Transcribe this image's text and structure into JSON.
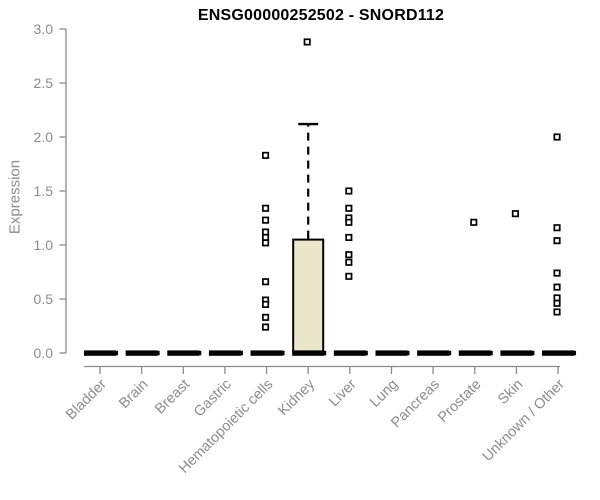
{
  "chart_data": {
    "type": "boxplot",
    "title": "ENSG00000252502 - SNORD112",
    "ylabel": "Expression",
    "xlabel": "",
    "ylim": [
      0,
      3
    ],
    "yticks": [
      "0.0",
      "0.5",
      "1.0",
      "1.5",
      "2.0",
      "2.5",
      "3.0"
    ],
    "grid": false,
    "legend_position": "none",
    "categories": [
      "Bladder",
      "Brain",
      "Breast",
      "Gastric",
      "Hematopoietic cells",
      "Kidney",
      "Liver",
      "Lung",
      "Pancreas",
      "Prostate",
      "Skin",
      "Unknown / Other"
    ],
    "boxes": [
      {
        "category": "Bladder",
        "q1": 0,
        "median": 0,
        "q3": 0,
        "whisker_low": 0,
        "whisker_high": 0,
        "outliers": []
      },
      {
        "category": "Brain",
        "q1": 0,
        "median": 0,
        "q3": 0,
        "whisker_low": 0,
        "whisker_high": 0,
        "outliers": []
      },
      {
        "category": "Breast",
        "q1": 0,
        "median": 0,
        "q3": 0,
        "whisker_low": 0,
        "whisker_high": 0,
        "outliers": []
      },
      {
        "category": "Gastric",
        "q1": 0,
        "median": 0,
        "q3": 0,
        "whisker_low": 0,
        "whisker_high": 0,
        "outliers": []
      },
      {
        "category": "Hematopoietic cells",
        "q1": 0,
        "median": 0,
        "q3": 0,
        "whisker_low": 0,
        "whisker_high": 0,
        "outliers": [
          1.83,
          1.34,
          1.23,
          1.12,
          1.07,
          1.02,
          0.66,
          0.49,
          0.45,
          0.33,
          0.24
        ]
      },
      {
        "category": "Kidney",
        "q1": 0,
        "median": 0,
        "q3": 1.05,
        "whisker_low": 0,
        "whisker_high": 2.12,
        "outliers": [
          2.88
        ]
      },
      {
        "category": "Liver",
        "q1": 0,
        "median": 0,
        "q3": 0,
        "whisker_low": 0,
        "whisker_high": 0,
        "outliers": [
          1.5,
          1.34,
          1.25,
          1.21,
          1.07,
          0.91,
          0.84,
          0.71
        ]
      },
      {
        "category": "Lung",
        "q1": 0,
        "median": 0,
        "q3": 0,
        "whisker_low": 0,
        "whisker_high": 0,
        "outliers": []
      },
      {
        "category": "Pancreas",
        "q1": 0,
        "median": 0,
        "q3": 0,
        "whisker_low": 0,
        "whisker_high": 0,
        "outliers": []
      },
      {
        "category": "Prostate",
        "q1": 0,
        "median": 0,
        "q3": 0,
        "whisker_low": 0,
        "whisker_high": 0,
        "outliers": [
          1.21
        ]
      },
      {
        "category": "Skin",
        "q1": 0,
        "median": 0,
        "q3": 0,
        "whisker_low": 0,
        "whisker_high": 0,
        "outliers": [
          1.29
        ]
      },
      {
        "category": "Unknown / Other",
        "q1": 0,
        "median": 0,
        "q3": 0,
        "whisker_low": 0,
        "whisker_high": 0,
        "outliers": [
          2.0,
          1.16,
          1.04,
          0.74,
          0.61,
          0.51,
          0.46,
          0.38
        ]
      }
    ],
    "colors": {
      "background": "#ffffff",
      "box_fill": "#ece7cb",
      "box_stroke": "#000000",
      "median": "#000000",
      "whisker": "#000000",
      "outlier_fill": "#ffffff",
      "outlier_stroke": "#000000",
      "axis": "#8c8c8c",
      "tick_label": "#8c8c8c",
      "title": "#000000"
    }
  }
}
